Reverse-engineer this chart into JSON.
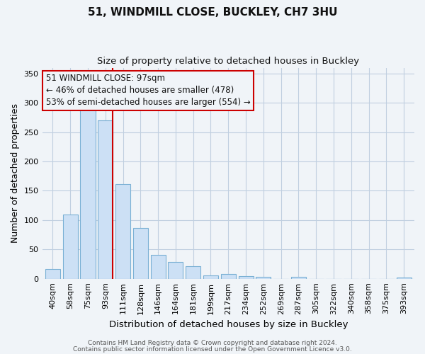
{
  "title": "51, WINDMILL CLOSE, BUCKLEY, CH7 3HU",
  "subtitle": "Size of property relative to detached houses in Buckley",
  "xlabel": "Distribution of detached houses by size in Buckley",
  "ylabel": "Number of detached properties",
  "bar_labels": [
    "40sqm",
    "58sqm",
    "75sqm",
    "93sqm",
    "111sqm",
    "128sqm",
    "146sqm",
    "164sqm",
    "181sqm",
    "199sqm",
    "217sqm",
    "234sqm",
    "252sqm",
    "269sqm",
    "287sqm",
    "305sqm",
    "322sqm",
    "340sqm",
    "358sqm",
    "375sqm",
    "393sqm"
  ],
  "bar_values": [
    16,
    109,
    293,
    270,
    162,
    86,
    41,
    28,
    21,
    6,
    8,
    4,
    3,
    0,
    3,
    0,
    0,
    0,
    0,
    0,
    2
  ],
  "bar_color": "#cce0f5",
  "bar_edgecolor": "#7ab0d4",
  "vline_x_index": 3,
  "vline_color": "#cc0000",
  "ylim": [
    0,
    360
  ],
  "yticks": [
    0,
    50,
    100,
    150,
    200,
    250,
    300,
    350
  ],
  "annotation_title": "51 WINDMILL CLOSE: 97sqm",
  "annotation_line1": "← 46% of detached houses are smaller (478)",
  "annotation_line2": "53% of semi-detached houses are larger (554) →",
  "annotation_box_edgecolor": "#cc0000",
  "footer1": "Contains HM Land Registry data © Crown copyright and database right 2024.",
  "footer2": "Contains public sector information licensed under the Open Government Licence v3.0.",
  "background_color": "#f0f4f8",
  "grid_color": "#c0cfe0"
}
